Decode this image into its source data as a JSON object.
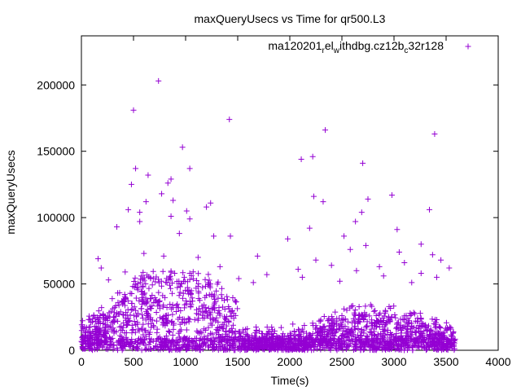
{
  "chart_data": {
    "type": "scatter",
    "title": "maxQueryUsecs vs Time for qr500.L3",
    "xlabel": "Time(s)",
    "ylabel": "maxQueryUsecs",
    "xlim": [
      0,
      4000
    ],
    "ylim": [
      0,
      237000
    ],
    "x_ticks": [
      0,
      500,
      1000,
      1500,
      2000,
      2500,
      3000,
      3500,
      4000
    ],
    "y_ticks": [
      0,
      50000,
      100000,
      150000,
      200000
    ],
    "x_tick_labels": [
      "0",
      "500",
      "1000",
      "1500",
      "2000",
      "2500",
      "3000",
      "3500",
      "4000"
    ],
    "y_tick_labels": [
      "0",
      "50000",
      "100000",
      "150000",
      "200000"
    ],
    "grid": false,
    "legend_position": "top-right",
    "marker": "plus",
    "series": [
      {
        "name": "ma120201_rel_withdbg.cz12b_c32r128",
        "legend_parts": [
          {
            "text": "ma120201",
            "sub": false
          },
          {
            "text": "r",
            "sub": true
          },
          {
            "text": "el",
            "sub": false
          },
          {
            "text": "w",
            "sub": true
          },
          {
            "text": "ithdbg.cz12b",
            "sub": false
          },
          {
            "text": "c",
            "sub": true
          },
          {
            "text": "32r128",
            "sub": false
          }
        ],
        "color": "#9400d3",
        "points": [
          [
            740,
            203000
          ],
          [
            500,
            181000
          ],
          [
            1420,
            174000
          ],
          [
            2340,
            166000
          ],
          [
            3390,
            163000
          ],
          [
            970,
            153000
          ],
          [
            2220,
            146000
          ],
          [
            2110,
            144000
          ],
          [
            2700,
            141000
          ],
          [
            1040,
            137000
          ],
          [
            520,
            137000
          ],
          [
            640,
            132000
          ],
          [
            860,
            129000
          ],
          [
            830,
            126000
          ],
          [
            480,
            125000
          ],
          [
            770,
            118000
          ],
          [
            2980,
            117000
          ],
          [
            2230,
            116000
          ],
          [
            2750,
            114000
          ],
          [
            2320,
            112000
          ],
          [
            620,
            112000
          ],
          [
            880,
            113000
          ],
          [
            1240,
            111000
          ],
          [
            1200,
            108000
          ],
          [
            3340,
            106000
          ],
          [
            450,
            106000
          ],
          [
            2690,
            104000
          ],
          [
            560,
            104000
          ],
          [
            1010,
            105000
          ],
          [
            1040,
            99000
          ],
          [
            860,
            101000
          ],
          [
            2630,
            97000
          ],
          [
            560,
            97000
          ],
          [
            2190,
            92000
          ],
          [
            3030,
            91000
          ],
          [
            340,
            93000
          ],
          [
            940,
            88000
          ],
          [
            1270,
            86000
          ],
          [
            1430,
            86000
          ],
          [
            2520,
            86000
          ],
          [
            1980,
            84000
          ],
          [
            2730,
            79000
          ],
          [
            3260,
            80000
          ],
          [
            2580,
            76000
          ],
          [
            3050,
            74000
          ],
          [
            3370,
            72000
          ],
          [
            1690,
            71000
          ],
          [
            160,
            69000
          ],
          [
            600,
            73000
          ],
          [
            790,
            71000
          ],
          [
            1120,
            70000
          ],
          [
            2250,
            68000
          ],
          [
            3100,
            66000
          ],
          [
            3450,
            68000
          ],
          [
            2400,
            64000
          ],
          [
            2860,
            63000
          ],
          [
            3530,
            62000
          ],
          [
            190,
            62000
          ],
          [
            1330,
            63000
          ],
          [
            2080,
            61000
          ],
          [
            2640,
            60000
          ],
          [
            3260,
            58000
          ],
          [
            1780,
            57000
          ],
          [
            420,
            59000
          ],
          [
            1040,
            58000
          ],
          [
            2900,
            56000
          ],
          [
            1510,
            54000
          ],
          [
            2120,
            55000
          ],
          [
            3410,
            55000
          ],
          [
            260,
            53000
          ],
          [
            690,
            54000
          ],
          [
            980,
            52000
          ],
          [
            1650,
            51000
          ],
          [
            2480,
            52000
          ],
          [
            3170,
            51000
          ]
        ]
      }
    ]
  }
}
